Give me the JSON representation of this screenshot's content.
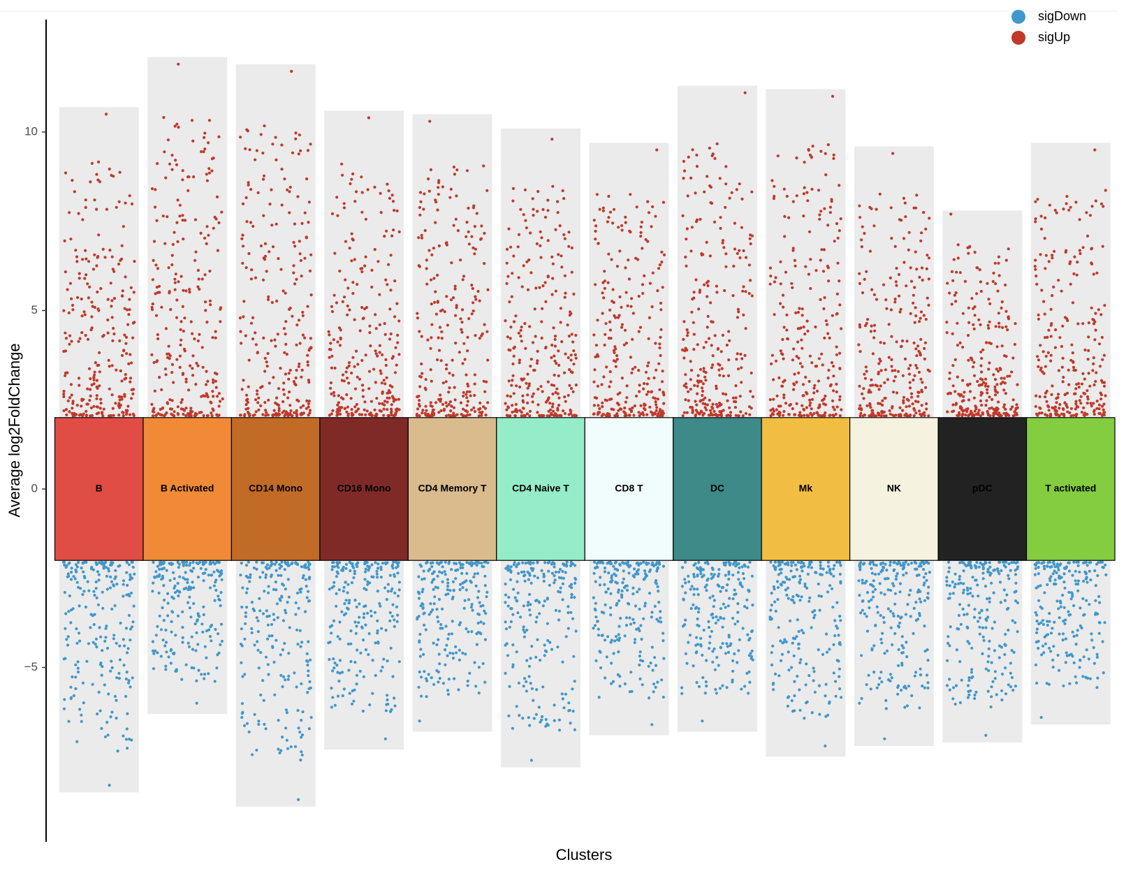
{
  "chart_data": {
    "type": "scatter",
    "title": "",
    "xlabel": "Clusters",
    "ylabel": "Average log2FoldChange",
    "ylim": [
      -10,
      13
    ],
    "yticks": [
      -5,
      0,
      5,
      10
    ],
    "ytick_labels": [
      "−5",
      "0",
      "5",
      "10"
    ],
    "center_band": [
      -2,
      2
    ],
    "grid": false,
    "legend_position": "top-right",
    "series": [
      {
        "name": "sigDown",
        "color": "#4197cb"
      },
      {
        "name": "sigUp",
        "color": "#c0392b"
      }
    ],
    "clusters": [
      {
        "label": "B",
        "color": "#e04d45",
        "label_color": "#000000",
        "max": 10.7,
        "min": -8.5,
        "up_max_point": 10.5,
        "down_min_point": -8.3
      },
      {
        "label": "B Activated",
        "color": "#f08a37",
        "label_color": "#000000",
        "max": 12.1,
        "min": -6.3,
        "up_max_point": 11.9,
        "down_min_point": -6.0
      },
      {
        "label": "CD14 Mono",
        "color": "#c16b26",
        "label_color": "#000000",
        "max": 11.9,
        "min": -8.9,
        "up_max_point": 11.7,
        "down_min_point": -8.7
      },
      {
        "label": "CD16 Mono",
        "color": "#7f2a27",
        "label_color": "#000000",
        "max": 10.6,
        "min": -7.3,
        "up_max_point": 10.4,
        "down_min_point": -7.0
      },
      {
        "label": "CD4 Memory T",
        "color": "#d9bb8d",
        "label_color": "#000000",
        "max": 10.5,
        "min": -6.8,
        "up_max_point": 10.3,
        "down_min_point": -6.5
      },
      {
        "label": "CD4 Naive T",
        "color": "#95ecc9",
        "label_color": "#000000",
        "max": 10.1,
        "min": -7.8,
        "up_max_point": 9.8,
        "down_min_point": -7.6
      },
      {
        "label": "CD8 T",
        "color": "#f1fdfc",
        "label_color": "#000000",
        "max": 9.7,
        "min": -6.9,
        "up_max_point": 9.5,
        "down_min_point": -6.6
      },
      {
        "label": "DC",
        "color": "#3d8a89",
        "label_color": "#000000",
        "max": 11.3,
        "min": -6.8,
        "up_max_point": 11.1,
        "down_min_point": -6.5
      },
      {
        "label": "Mk",
        "color": "#f2bd43",
        "label_color": "#000000",
        "max": 11.2,
        "min": -7.5,
        "up_max_point": 11.0,
        "down_min_point": -7.2
      },
      {
        "label": "NK",
        "color": "#f5f3e0",
        "label_color": "#000000",
        "max": 9.6,
        "min": -7.2,
        "up_max_point": 9.4,
        "down_min_point": -7.0
      },
      {
        "label": "pDC",
        "color": "#222222",
        "label_color": "#000000",
        "max": 7.8,
        "min": -7.1,
        "up_max_point": 7.7,
        "down_min_point": -6.9
      },
      {
        "label": "T activated",
        "color": "#84cc40",
        "label_color": "#000000",
        "max": 9.7,
        "min": -6.6,
        "up_max_point": 9.5,
        "down_min_point": -6.4
      }
    ]
  }
}
